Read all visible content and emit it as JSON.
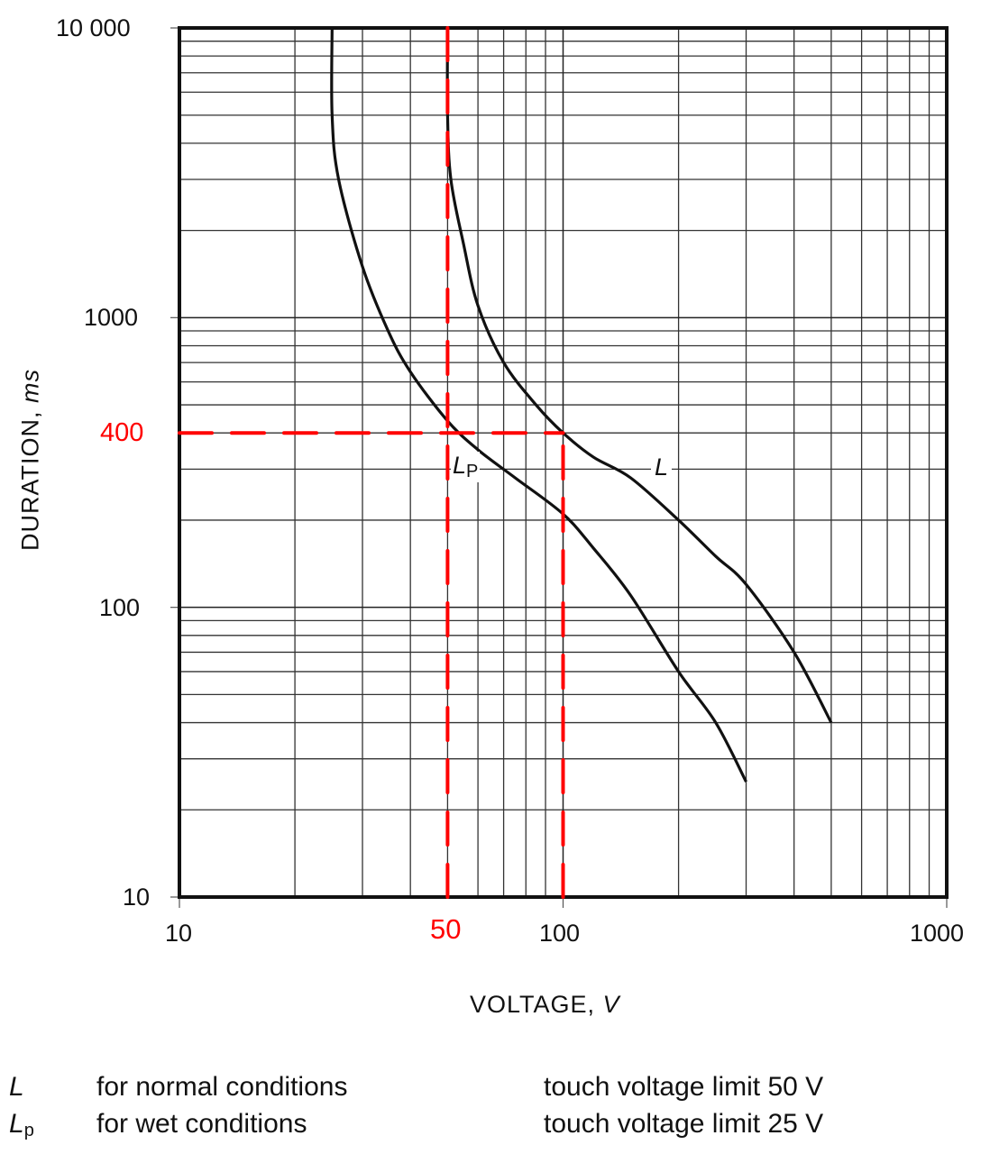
{
  "chart_data": {
    "type": "line",
    "title": "",
    "xlabel": "VOLTAGE, V",
    "ylabel": "DURATION, ms",
    "x_scale": "log",
    "y_scale": "log",
    "xlim": [
      10,
      1000
    ],
    "ylim": [
      10,
      10000
    ],
    "x_ticks": [
      "10",
      "100",
      "1000"
    ],
    "y_ticks": [
      "10",
      "100",
      "1000",
      "10 000"
    ],
    "grid": true,
    "series": [
      {
        "name": "L",
        "description": "for normal conditions",
        "note": "touch voltage limit 50 V",
        "points": [
          [
            50,
            10000
          ],
          [
            50,
            5000
          ],
          [
            51,
            3000
          ],
          [
            55,
            1800
          ],
          [
            60,
            1100
          ],
          [
            70,
            700
          ],
          [
            85,
            500
          ],
          [
            100,
            400
          ],
          [
            120,
            330
          ],
          [
            150,
            280
          ],
          [
            200,
            200
          ],
          [
            250,
            150
          ],
          [
            300,
            120
          ],
          [
            400,
            70
          ],
          [
            500,
            40
          ]
        ]
      },
      {
        "name": "Lp",
        "description": "for wet conditions",
        "note": "touch voltage limit 25 V",
        "points": [
          [
            25,
            10000
          ],
          [
            25,
            5000
          ],
          [
            26,
            3000
          ],
          [
            30,
            1500
          ],
          [
            35,
            900
          ],
          [
            40,
            650
          ],
          [
            50,
            440
          ],
          [
            60,
            350
          ],
          [
            75,
            280
          ],
          [
            100,
            210
          ],
          [
            120,
            160
          ],
          [
            150,
            110
          ],
          [
            200,
            60
          ],
          [
            250,
            40
          ],
          [
            300,
            25
          ]
        ]
      }
    ],
    "annotations": [
      {
        "type": "reference-line",
        "axis": "x",
        "value": 50,
        "label": "50",
        "color": "#ff0000",
        "style": "dashed"
      },
      {
        "type": "reference-line",
        "axis": "x",
        "value": 100,
        "color": "#ff0000",
        "style": "dashed",
        "from_y": 10,
        "to_y": 400
      },
      {
        "type": "reference-line",
        "axis": "y",
        "value": 400,
        "label": "400",
        "color": "#ff0000",
        "style": "dashed",
        "from_x": 10,
        "to_x": 100
      },
      {
        "type": "curve-label",
        "text": "L",
        "x": 150,
        "y": 300
      },
      {
        "type": "curve-label",
        "text": "Lp",
        "x": 55,
        "y": 300
      }
    ],
    "legend": [
      {
        "symbol": "L",
        "text": "for normal conditions",
        "note": "touch voltage limit 50 V"
      },
      {
        "symbol": "Lp",
        "text": "for wet conditions",
        "note": "touch voltage limit 25 V"
      }
    ]
  },
  "axes": {
    "y_tick_10000": "10 000",
    "y_tick_1000": "1000",
    "y_tick_100": "100",
    "y_tick_10": "10",
    "x_tick_10": "10",
    "x_tick_100": "100",
    "x_tick_1000": "1000",
    "ylabel_main": "DURATION, ",
    "ylabel_unit": "ms",
    "xlabel_main": "VOLTAGE, ",
    "xlabel_unit": "V"
  },
  "markers": {
    "y_400": "400",
    "x_50": "50"
  },
  "curve_labels": {
    "L": "L",
    "Lp_main": "L",
    "Lp_sub": "P"
  },
  "legend": {
    "row1": {
      "symbol": "L",
      "text": "for normal conditions",
      "note": "touch voltage limit 50 V"
    },
    "row2": {
      "symbol_main": "L",
      "symbol_sub": "p",
      "text": "for wet conditions",
      "note": "touch voltage limit 25 V"
    }
  },
  "colors": {
    "accent": "#ff0000",
    "line": "#111111"
  }
}
